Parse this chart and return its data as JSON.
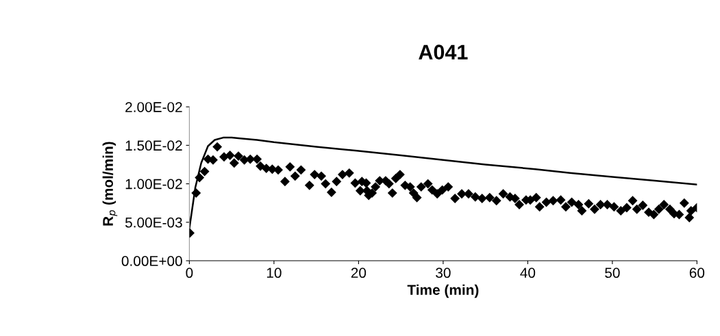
{
  "chart_data": {
    "type": "scatter",
    "title": "A041",
    "xlabel": "Time (min)",
    "ylabel": "R$_{p}$ (mol/min)",
    "xlim": [
      0,
      60
    ],
    "xticks": [
      0,
      10,
      20,
      30,
      40,
      50,
      60
    ],
    "ylim": [
      0,
      0.02
    ],
    "yticks": [
      {
        "value": 0,
        "label": "0.00E+00"
      },
      {
        "value": 0.005,
        "label": "5.00E-03"
      },
      {
        "value": 0.01,
        "label": "1.00E-02"
      },
      {
        "value": 0.015,
        "label": "1.50E-02"
      },
      {
        "value": 0.02,
        "label": "2.00E-02"
      }
    ],
    "grid": false,
    "legend": false,
    "series": [
      {
        "marker": "diamond",
        "color": "#000000",
        "x": [
          0.05,
          0.8,
          1.2,
          1.8,
          2.2,
          2.8,
          3.3,
          4.1,
          4.8,
          5.3,
          5.8,
          6.5,
          7.2,
          8.0,
          8.4,
          9.1,
          9.8,
          10.5,
          11.3,
          11.9,
          12.5,
          13.2,
          14.2,
          14.8,
          15.6,
          16.1,
          16.8,
          17.4,
          18.1,
          18.9,
          19.6,
          20.2,
          20.4,
          20.9,
          21.0,
          21.2,
          21.6,
          22.0,
          22.5,
          23.2,
          23.6,
          24.0,
          24.4,
          24.9,
          25.5,
          26.1,
          26.5,
          26.9,
          27.4,
          28.2,
          28.7,
          29.3,
          29.9,
          30.6,
          31.4,
          32.2,
          33.0,
          33.8,
          34.6,
          35.5,
          36.3,
          37.1,
          37.9,
          38.5,
          39.0,
          39.8,
          40.3,
          41.0,
          41.4,
          42.2,
          43.0,
          43.9,
          44.5,
          45.2,
          46.0,
          46.4,
          47.2,
          47.9,
          48.6,
          49.4,
          50.2,
          51.0,
          51.7,
          52.4,
          52.9,
          53.6,
          54.3,
          54.9,
          55.5,
          56.1,
          56.8,
          57.3,
          57.9,
          58.5,
          59.1,
          59.3,
          60.0
        ],
        "values": [
          0.0036,
          0.0088,
          0.0108,
          0.0116,
          0.0132,
          0.0131,
          0.0148,
          0.0135,
          0.0137,
          0.0127,
          0.0136,
          0.0131,
          0.0132,
          0.0132,
          0.0123,
          0.012,
          0.0119,
          0.0118,
          0.0103,
          0.0122,
          0.011,
          0.0118,
          0.0098,
          0.0112,
          0.011,
          0.01,
          0.0089,
          0.0103,
          0.0112,
          0.0114,
          0.0101,
          0.0091,
          0.0103,
          0.0101,
          0.0091,
          0.0085,
          0.0088,
          0.0096,
          0.0104,
          0.0104,
          0.01,
          0.0088,
          0.0107,
          0.0112,
          0.0098,
          0.0096,
          0.0088,
          0.0082,
          0.0096,
          0.01,
          0.0092,
          0.0087,
          0.0092,
          0.0096,
          0.0081,
          0.0087,
          0.0087,
          0.0083,
          0.0081,
          0.0082,
          0.0078,
          0.0087,
          0.0083,
          0.0081,
          0.0073,
          0.0079,
          0.0079,
          0.0082,
          0.007,
          0.0076,
          0.0078,
          0.0079,
          0.007,
          0.0076,
          0.0073,
          0.0065,
          0.0074,
          0.0067,
          0.0073,
          0.0073,
          0.007,
          0.0065,
          0.0069,
          0.0078,
          0.0067,
          0.0072,
          0.0063,
          0.006,
          0.0067,
          0.0073,
          0.0067,
          0.0061,
          0.006,
          0.0075,
          0.0056,
          0.0065,
          0.0069
        ]
      },
      {
        "type": "line",
        "line_style": "solid",
        "color": "#000000",
        "x": [
          0,
          0.7,
          1.4,
          2.2,
          3.0,
          4.0,
          5.0,
          6.0,
          8.0,
          10.0,
          15.0,
          19.8,
          25.0,
          30.0,
          35.0,
          40.9,
          45.0,
          50.0,
          55.0,
          60.0
        ],
        "values": [
          0.0042,
          0.0095,
          0.0127,
          0.0149,
          0.0157,
          0.016,
          0.016,
          0.0159,
          0.0157,
          0.0154,
          0.0148,
          0.0143,
          0.0137,
          0.0131,
          0.0125,
          0.0119,
          0.0114,
          0.0109,
          0.0104,
          0.0099
        ]
      }
    ]
  }
}
